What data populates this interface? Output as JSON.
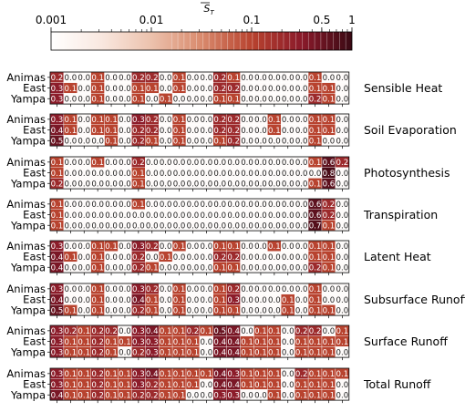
{
  "chart_data": {
    "type": "heatmap",
    "colorbar": {
      "label": "S̄_{T_i}",
      "scale": "log",
      "range": [
        0.001,
        1
      ],
      "tick_labels": [
        "0.001",
        "0.01",
        "0.1",
        "0.5",
        "1"
      ],
      "tick_values": [
        0.001,
        0.01,
        0.1,
        0.5,
        1
      ],
      "colors": [
        "#ffffff",
        "#f9e8e0",
        "#ecc2ad",
        "#d98a6d",
        "#b8432f",
        "#8a1a2a",
        "#3a0a14"
      ]
    },
    "rows": [
      "Animas",
      "East",
      "Yampa"
    ],
    "column_count": 22,
    "panels": [
      {
        "title": "Sensible Heat",
        "values": [
          [
            0.2,
            0.0,
            0.0,
            0.1,
            0.0,
            0.0,
            0.2,
            0.2,
            0.0,
            0.1,
            0.0,
            0.0,
            0.2,
            0.1,
            0.0,
            0.0,
            0.0,
            0.0,
            0.0,
            0.1,
            0.0,
            0.0
          ],
          [
            0.3,
            0.1,
            0.0,
            0.1,
            0.0,
            0.0,
            0.1,
            0.1,
            0.0,
            0.1,
            0.0,
            0.0,
            0.2,
            0.2,
            0.0,
            0.0,
            0.0,
            0.0,
            0.0,
            0.1,
            0.1,
            0.0
          ],
          [
            0.3,
            0.0,
            0.0,
            0.1,
            0.0,
            0.0,
            0.1,
            0.0,
            0.1,
            0.0,
            0.0,
            0.0,
            0.1,
            0.1,
            0.0,
            0.0,
            0.0,
            0.0,
            0.0,
            0.2,
            0.1,
            0.0
          ]
        ]
      },
      {
        "title": "Soil Evaporation",
        "values": [
          [
            0.3,
            0.1,
            0.0,
            0.1,
            0.1,
            0.0,
            0.3,
            0.2,
            0.0,
            0.1,
            0.0,
            0.0,
            0.2,
            0.2,
            0.0,
            0.0,
            0.1,
            0.0,
            0.0,
            0.1,
            0.1,
            0.0
          ],
          [
            0.4,
            0.1,
            0.0,
            0.1,
            0.1,
            0.0,
            0.2,
            0.2,
            0.0,
            0.1,
            0.0,
            0.0,
            0.2,
            0.2,
            0.0,
            0.0,
            0.1,
            0.0,
            0.0,
            0.1,
            0.1,
            0.0
          ],
          [
            0.5,
            0.0,
            0.0,
            0.0,
            0.1,
            0.0,
            0.2,
            0.1,
            0.0,
            0.1,
            0.0,
            0.0,
            0.1,
            0.2,
            0.0,
            0.0,
            0.0,
            0.0,
            0.0,
            0.1,
            0.0,
            0.0
          ]
        ]
      },
      {
        "title": "Photosynthesis",
        "values": [
          [
            0.1,
            0.0,
            0.0,
            0.1,
            0.0,
            0.0,
            0.2,
            0.0,
            0.0,
            0.0,
            0.0,
            0.0,
            0.0,
            0.0,
            0.0,
            0.0,
            0.0,
            0.0,
            0.0,
            0.1,
            0.6,
            0.2
          ],
          [
            0.1,
            0.0,
            0.0,
            0.0,
            0.0,
            0.0,
            0.1,
            0.0,
            0.0,
            0.0,
            0.0,
            0.0,
            0.0,
            0.0,
            0.0,
            0.0,
            0.0,
            0.0,
            0.0,
            0.0,
            0.8,
            0.0
          ],
          [
            0.2,
            0.0,
            0.0,
            0.0,
            0.0,
            0.0,
            0.1,
            0.0,
            0.0,
            0.0,
            0.0,
            0.0,
            0.0,
            0.0,
            0.0,
            0.0,
            0.0,
            0.0,
            0.0,
            0.1,
            0.6,
            0.0
          ]
        ]
      },
      {
        "title": "Transpiration",
        "values": [
          [
            0.1,
            0.0,
            0.0,
            0.0,
            0.0,
            0.0,
            0.1,
            0.0,
            0.0,
            0.0,
            0.0,
            0.0,
            0.0,
            0.0,
            0.0,
            0.0,
            0.0,
            0.0,
            0.0,
            0.6,
            0.2,
            0.0
          ],
          [
            0.1,
            0.0,
            0.0,
            0.0,
            0.0,
            0.0,
            0.0,
            0.0,
            0.0,
            0.0,
            0.0,
            0.0,
            0.0,
            0.0,
            0.0,
            0.0,
            0.0,
            0.0,
            0.0,
            0.6,
            0.2,
            0.0
          ],
          [
            0.1,
            0.0,
            0.0,
            0.0,
            0.0,
            0.0,
            0.0,
            0.0,
            0.0,
            0.0,
            0.0,
            0.0,
            0.0,
            0.0,
            0.0,
            0.0,
            0.0,
            0.0,
            0.0,
            0.7,
            0.1,
            0.0
          ]
        ]
      },
      {
        "title": "Latent Heat",
        "values": [
          [
            0.3,
            0.0,
            0.0,
            0.1,
            0.1,
            0.0,
            0.3,
            0.2,
            0.0,
            0.1,
            0.0,
            0.0,
            0.1,
            0.1,
            0.0,
            0.0,
            0.1,
            0.0,
            0.0,
            0.1,
            0.1,
            0.0
          ],
          [
            0.4,
            0.1,
            0.0,
            0.1,
            0.0,
            0.0,
            0.2,
            0.0,
            0.1,
            0.0,
            0.0,
            0.0,
            0.2,
            0.2,
            0.0,
            0.0,
            0.0,
            0.0,
            0.0,
            0.1,
            0.1,
            0.0
          ],
          [
            0.4,
            0.0,
            0.0,
            0.1,
            0.0,
            0.0,
            0.2,
            0.1,
            0.0,
            0.0,
            0.0,
            0.0,
            0.1,
            0.1,
            0.0,
            0.0,
            0.0,
            0.0,
            0.0,
            0.2,
            0.1,
            0.0
          ]
        ]
      },
      {
        "title": "Subsurface Runoff",
        "values": [
          [
            0.3,
            0.0,
            0.0,
            0.1,
            0.0,
            0.0,
            0.3,
            0.2,
            0.0,
            0.1,
            0.0,
            0.0,
            0.1,
            0.2,
            0.0,
            0.0,
            0.0,
            0.0,
            0.0,
            0.1,
            0.0,
            0.0
          ],
          [
            0.4,
            0.0,
            0.0,
            0.1,
            0.0,
            0.0,
            0.4,
            0.1,
            0.0,
            0.1,
            0.0,
            0.0,
            0.1,
            0.3,
            0.0,
            0.0,
            0.0,
            0.1,
            0.0,
            0.1,
            0.0,
            0.0
          ],
          [
            0.5,
            0.1,
            0.0,
            0.1,
            0.0,
            0.0,
            0.2,
            0.1,
            0.0,
            0.1,
            0.0,
            0.0,
            0.1,
            0.1,
            0.0,
            0.0,
            0.0,
            0.1,
            0.0,
            0.1,
            0.1,
            0.0
          ]
        ]
      },
      {
        "title": "Surface Runoff",
        "values": [
          [
            0.3,
            0.2,
            0.1,
            0.2,
            0.2,
            0.0,
            0.3,
            0.4,
            0.1,
            0.1,
            0.2,
            0.1,
            0.5,
            0.4,
            0.0,
            0.1,
            0.1,
            0.0,
            0.2,
            0.2,
            0.0,
            0.1
          ],
          [
            0.3,
            0.1,
            0.1,
            0.2,
            0.1,
            0.1,
            0.3,
            0.3,
            0.1,
            0.1,
            0.1,
            0.0,
            0.4,
            0.4,
            0.1,
            0.1,
            0.1,
            0.0,
            0.1,
            0.1,
            0.1,
            0.1
          ],
          [
            0.3,
            0.1,
            0.1,
            0.2,
            0.1,
            0.0,
            0.2,
            0.3,
            0.1,
            0.1,
            0.1,
            0.0,
            0.4,
            0.4,
            0.1,
            0.1,
            0.1,
            0.0,
            0.1,
            0.1,
            0.1,
            0.0
          ]
        ]
      },
      {
        "title": "Total Runoff",
        "values": [
          [
            0.3,
            0.1,
            0.1,
            0.2,
            0.1,
            0.1,
            0.3,
            0.4,
            0.1,
            0.1,
            0.1,
            0.1,
            0.4,
            0.3,
            0.1,
            0.1,
            0.1,
            0.0,
            0.2,
            0.1,
            0.1,
            0.1
          ],
          [
            0.3,
            0.1,
            0.1,
            0.2,
            0.1,
            0.1,
            0.3,
            0.2,
            0.1,
            0.1,
            0.1,
            0.0,
            0.4,
            0.4,
            0.1,
            0.1,
            0.1,
            0.0,
            0.1,
            0.1,
            0.1,
            0.0
          ],
          [
            0.4,
            0.1,
            0.1,
            0.2,
            0.1,
            0.1,
            0.2,
            0.2,
            0.1,
            0.1,
            0.0,
            0.0,
            0.3,
            0.3,
            0.0,
            0.0,
            0.1,
            0.0,
            0.1,
            0.1,
            0.1,
            0.0
          ]
        ]
      }
    ]
  }
}
